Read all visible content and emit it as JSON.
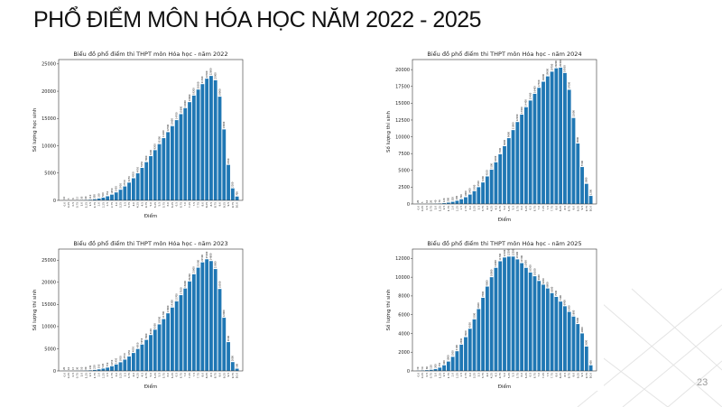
{
  "title": "PHỔ ĐIỂM MÔN HÓA HỌC NĂM 2022 - 2025",
  "page_number": "23",
  "chart_data": [
    {
      "type": "bar",
      "title": "Biểu đồ phổ điểm thi THPT môn Hóa học - năm 2022",
      "x_label": "Điểm",
      "y_label": "Số lượng học sinh",
      "color": "#1f77b4",
      "categories": [
        "0.0",
        "0.25",
        "0.5",
        "0.75",
        "1.0",
        "1.25",
        "1.5",
        "1.75",
        "2.0",
        "2.25",
        "2.5",
        "2.75",
        "3.0",
        "3.25",
        "3.5",
        "3.75",
        "4.0",
        "4.25",
        "4.5",
        "4.75",
        "5.0",
        "5.25",
        "5.5",
        "5.75",
        "6.0",
        "6.25",
        "6.5",
        "6.75",
        "7.0",
        "7.25",
        "7.5",
        "7.75",
        "8.0",
        "8.25",
        "8.5",
        "8.75",
        "9.0",
        "9.25",
        "9.5",
        "9.75",
        "10.0"
      ],
      "values": [
        10,
        5,
        8,
        15,
        30,
        60,
        110,
        200,
        330,
        500,
        750,
        1050,
        1450,
        1950,
        2550,
        3250,
        4050,
        4950,
        5950,
        7000,
        8100,
        9200,
        10300,
        11400,
        12500,
        13600,
        14700,
        15800,
        16900,
        18000,
        19200,
        20300,
        21300,
        22300,
        22800,
        22000,
        19000,
        13000,
        6500,
        2200,
        700
      ],
      "ylim": [
        0,
        25800
      ],
      "yticks": [
        0,
        5000,
        10000,
        15000,
        20000,
        25000
      ]
    },
    {
      "type": "bar",
      "title": "Biểu đồ phổ điểm thi THPT môn Hóa học - năm 2024",
      "x_label": "Điểm",
      "y_label": "Số lượng thí sinh",
      "color": "#1f77b4",
      "categories": [
        "0.0",
        "0.25",
        "0.5",
        "0.75",
        "1.0",
        "1.25",
        "1.5",
        "1.75",
        "2.0",
        "2.25",
        "2.5",
        "2.75",
        "3.0",
        "3.25",
        "3.5",
        "3.75",
        "4.0",
        "4.25",
        "4.5",
        "4.75",
        "5.0",
        "5.25",
        "5.5",
        "5.75",
        "6.0",
        "6.25",
        "6.5",
        "6.75",
        "7.0",
        "7.25",
        "7.5",
        "7.75",
        "8.0",
        "8.25",
        "8.5",
        "8.75",
        "9.0",
        "9.25",
        "9.5",
        "9.75",
        "10.0"
      ],
      "values": [
        20,
        5,
        10,
        20,
        40,
        70,
        120,
        200,
        320,
        480,
        700,
        1000,
        1400,
        1900,
        2500,
        3200,
        4100,
        5100,
        6200,
        7400,
        8600,
        9800,
        11000,
        12200,
        13300,
        14400,
        15400,
        16400,
        17300,
        18200,
        19000,
        19700,
        20200,
        20300,
        19500,
        17000,
        12800,
        9000,
        5500,
        3000,
        1200
      ],
      "ylim": [
        0,
        21500
      ],
      "yticks": [
        0,
        2500,
        5000,
        7500,
        10000,
        12500,
        15000,
        17500,
        20000
      ]
    },
    {
      "type": "bar",
      "title": "Biểu đồ phổ điểm thi THPT môn Hóa học - năm 2023",
      "x_label": "Điểm",
      "y_label": "Số lượng thí sinh",
      "color": "#1f77b4",
      "categories": [
        "0.0",
        "0.25",
        "0.5",
        "0.75",
        "1.0",
        "1.25",
        "1.5",
        "1.75",
        "2.0",
        "2.25",
        "2.5",
        "2.75",
        "3.0",
        "3.25",
        "3.5",
        "3.75",
        "4.0",
        "4.25",
        "4.5",
        "4.75",
        "5.0",
        "5.25",
        "5.5",
        "5.75",
        "6.0",
        "6.25",
        "6.5",
        "6.75",
        "7.0",
        "7.25",
        "7.5",
        "7.75",
        "8.0",
        "8.25",
        "8.5",
        "8.75",
        "9.0",
        "9.25",
        "9.5",
        "9.75",
        "10.0"
      ],
      "values": [
        20,
        10,
        15,
        30,
        50,
        80,
        130,
        220,
        350,
        520,
        750,
        1050,
        1450,
        1950,
        2550,
        3250,
        4050,
        4950,
        5950,
        7000,
        8100,
        9300,
        10500,
        11700,
        13000,
        14300,
        15700,
        17100,
        18600,
        20200,
        21800,
        23300,
        24500,
        25200,
        24800,
        23000,
        18500,
        12000,
        6500,
        2000,
        500
      ],
      "ylim": [
        0,
        27500
      ],
      "yticks": [
        0,
        5000,
        10000,
        15000,
        20000,
        25000
      ]
    },
    {
      "type": "bar",
      "title": "Biểu đồ phổ điểm thi THPT môn Hóa học - năm 2025",
      "x_label": "Điểm",
      "y_label": "Số lượng thí sinh",
      "color": "#1f77b4",
      "categories": [
        "0.0",
        "0.25",
        "0.5",
        "0.75",
        "1.0",
        "1.25",
        "1.5",
        "1.75",
        "2.0",
        "2.25",
        "2.5",
        "2.75",
        "3.0",
        "3.25",
        "3.5",
        "3.75",
        "4.0",
        "4.25",
        "4.5",
        "4.75",
        "5.0",
        "5.25",
        "5.5",
        "5.75",
        "6.0",
        "6.25",
        "6.5",
        "6.75",
        "7.0",
        "7.25",
        "7.5",
        "7.75",
        "8.0",
        "8.25",
        "8.5",
        "8.75",
        "9.0",
        "9.25",
        "9.5",
        "9.75",
        "10.0"
      ],
      "values": [
        30,
        50,
        80,
        120,
        200,
        350,
        600,
        1000,
        1500,
        2100,
        2800,
        3600,
        4500,
        5500,
        6600,
        7800,
        9000,
        10000,
        11000,
        11700,
        12100,
        12200,
        12200,
        11900,
        11500,
        11000,
        10500,
        10100,
        9600,
        9200,
        8800,
        8300,
        7900,
        7400,
        6900,
        6300,
        5800,
        5000,
        4000,
        2600,
        600
      ],
      "ylim": [
        0,
        13000
      ],
      "yticks": [
        0,
        2000,
        4000,
        6000,
        8000,
        10000,
        12000
      ]
    }
  ]
}
